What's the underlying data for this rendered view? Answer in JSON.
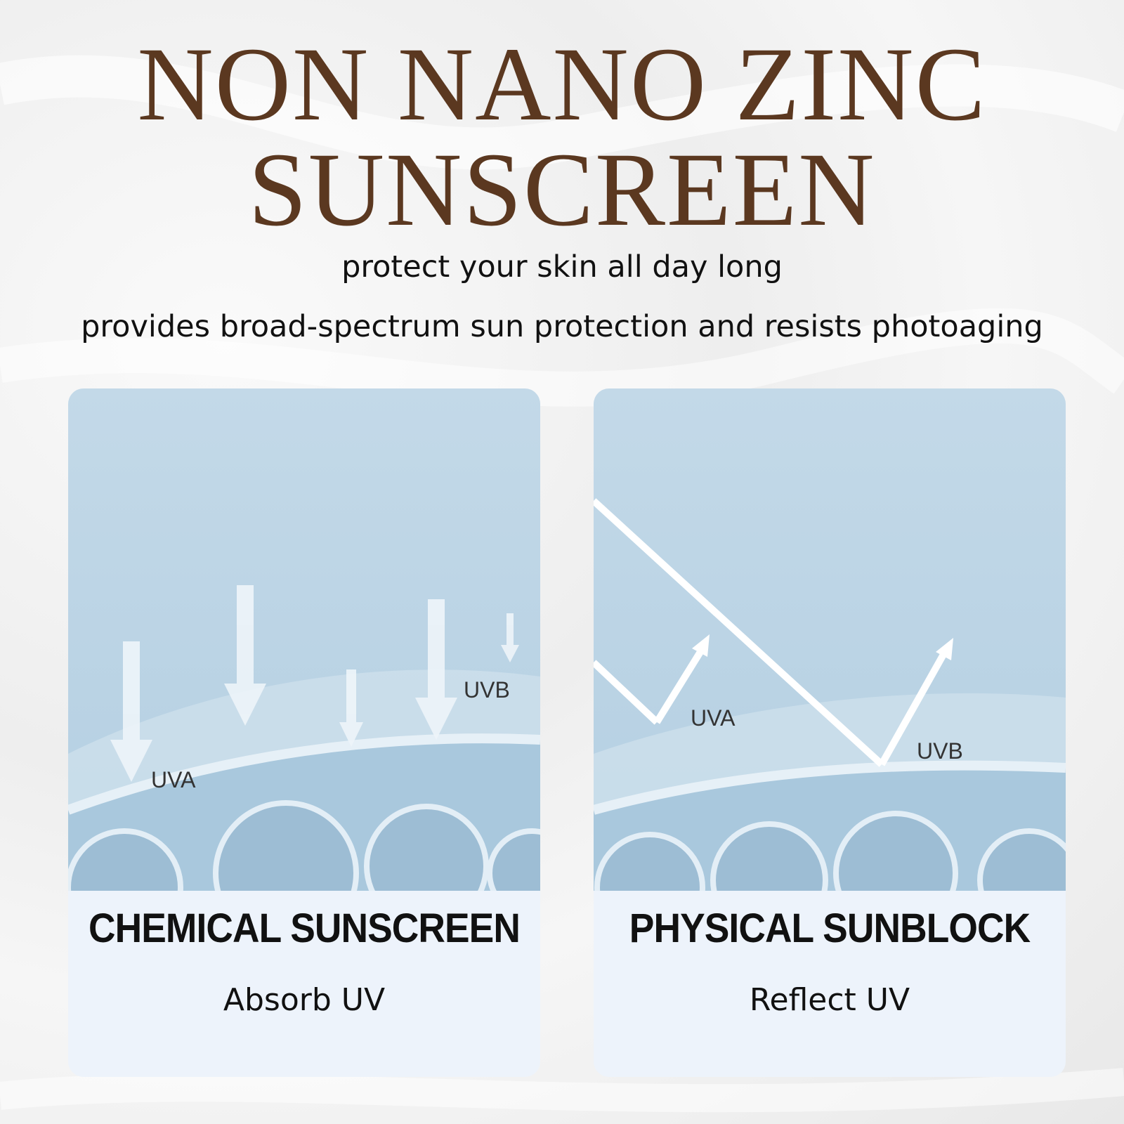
{
  "header": {
    "title_line1": "NON NANO ZINC",
    "title_line2": "SUNSCREEN",
    "subtitle1": "protect your skin all day long",
    "subtitle2": "provides broad-spectrum sun protection and resists photoaging"
  },
  "colors": {
    "title": "#5b3820",
    "card_bg": "#edf3fb",
    "illustration_sky": "#c3d9e8"
  },
  "cards": [
    {
      "title": "CHEMICAL SUNSCREEN",
      "subtitle": "Absorb UV",
      "labels": {
        "uva": "UVA",
        "uvb": "UVB"
      },
      "icon": "arrows-absorbed-illustration"
    },
    {
      "title": "PHYSICAL SUNBLOCK",
      "subtitle": "Reflect UV",
      "labels": {
        "uva": "UVA",
        "uvb": "UVB"
      },
      "icon": "rays-reflected-illustration"
    }
  ]
}
